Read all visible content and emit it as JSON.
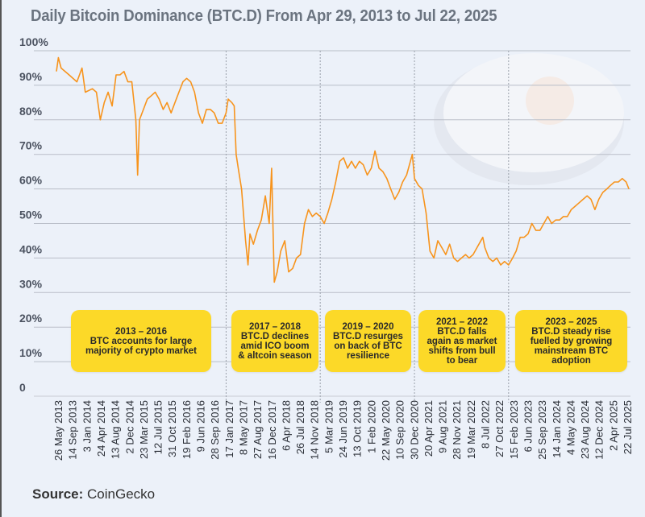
{
  "chart_data": {
    "type": "line",
    "title": "Daily Bitcoin Dominance (BTC.D) From Apr 29, 2013 to Jul 22, 2025",
    "xlabel": "",
    "ylabel": "",
    "ylim": [
      0,
      100
    ],
    "y_ticks": [
      "0",
      "10%",
      "20%",
      "30%",
      "40%",
      "50%",
      "60%",
      "70%",
      "80%",
      "90%",
      "100%"
    ],
    "x_range": [
      "2013-05-26",
      "2025-07-22"
    ],
    "x_ticks": [
      "26 May 2013",
      "14 Sep 2013",
      "3 Jan 2014",
      "24 Apr 2014",
      "13 Aug 2014",
      "2 Dec 2014",
      "23 Mar 2015",
      "12 Jul 2015",
      "31 Oct 2015",
      "19 Feb 2016",
      "9 Jun 2016",
      "28 Sep 2016",
      "17 Jan 2017",
      "8 May 2017",
      "27 Aug 2017",
      "16 Dec 2017",
      "6 Apr 2018",
      "26 Jul 2018",
      "14 Nov 2018",
      "5 Mar 2019",
      "24 Jun 2019",
      "13 Oct 2019",
      "1 Feb 2020",
      "22 May 2020",
      "10 Sep 2020",
      "30 Dec 2020",
      "20 Apr 2021",
      "9 Aug 2021",
      "28 Nov 2021",
      "19 Mar 2022",
      "8 Jul 2022",
      "27 Oct 2022",
      "15 Feb 2023",
      "6 Jun 2023",
      "25 Sep 2023",
      "14 Jan 2024",
      "4 May 2024",
      "23 Aug 2024",
      "12 Dec 2024",
      "2 Apr 2025",
      "22 Jul 2025"
    ],
    "grid": true,
    "line_color": "#f7941d",
    "series": [
      {
        "x": [
          "2013-05-26",
          "2013-06-10",
          "2013-07-01",
          "2013-09-01",
          "2013-11-01",
          "2013-12-10",
          "2014-01-05",
          "2014-03-01",
          "2014-04-01",
          "2014-05-01",
          "2014-06-01",
          "2014-07-01",
          "2014-08-01",
          "2014-09-01",
          "2014-10-01",
          "2014-11-01",
          "2014-12-01",
          "2015-01-01",
          "2015-02-01",
          "2015-02-15",
          "2015-03-01",
          "2015-04-01",
          "2015-05-01",
          "2015-06-01",
          "2015-07-01",
          "2015-08-01",
          "2015-09-01",
          "2015-10-01",
          "2015-11-01",
          "2015-12-01",
          "2016-01-01",
          "2016-02-01",
          "2016-03-01",
          "2016-04-01",
          "2016-05-01",
          "2016-06-01",
          "2016-07-01",
          "2016-08-01",
          "2016-09-01",
          "2016-10-01",
          "2016-11-01",
          "2016-12-01",
          "2017-01-01",
          "2017-01-17",
          "2017-02-15",
          "2017-03-05",
          "2017-03-20",
          "2017-04-05",
          "2017-05-01",
          "2017-06-01",
          "2017-06-20",
          "2017-07-05",
          "2017-08-01",
          "2017-09-01",
          "2017-10-01",
          "2017-11-01",
          "2017-12-01",
          "2017-12-20",
          "2018-01-10",
          "2018-02-01",
          "2018-03-01",
          "2018-04-01",
          "2018-05-01",
          "2018-06-01",
          "2018-07-01",
          "2018-08-01",
          "2018-09-01",
          "2018-10-01",
          "2018-11-01",
          "2018-12-01",
          "2019-01-01",
          "2019-02-01",
          "2019-03-01",
          "2019-04-01",
          "2019-05-01",
          "2019-06-01",
          "2019-07-01",
          "2019-08-01",
          "2019-09-01",
          "2019-10-01",
          "2019-11-01",
          "2019-12-01",
          "2020-01-01",
          "2020-02-01",
          "2020-03-01",
          "2020-04-01",
          "2020-05-01",
          "2020-06-01",
          "2020-07-01",
          "2020-08-01",
          "2020-09-01",
          "2020-10-01",
          "2020-11-01",
          "2020-12-15",
          "2021-01-01",
          "2021-02-01",
          "2021-03-01",
          "2021-04-01",
          "2021-05-01",
          "2021-06-01",
          "2021-07-01",
          "2021-08-01",
          "2021-09-01",
          "2021-10-01",
          "2021-11-01",
          "2021-12-01",
          "2022-01-01",
          "2022-02-01",
          "2022-03-01",
          "2022-04-01",
          "2022-05-01",
          "2022-06-15",
          "2022-07-01",
          "2022-08-01",
          "2022-09-01",
          "2022-10-01",
          "2022-11-01",
          "2022-12-01",
          "2023-01-01",
          "2023-02-01",
          "2023-03-01",
          "2023-04-01",
          "2023-05-01",
          "2023-06-01",
          "2023-07-01",
          "2023-08-01",
          "2023-09-01",
          "2023-10-01",
          "2023-11-01",
          "2023-12-01",
          "2024-01-01",
          "2024-02-01",
          "2024-03-01",
          "2024-04-01",
          "2024-05-01",
          "2024-06-01",
          "2024-07-01",
          "2024-08-01",
          "2024-09-01",
          "2024-10-01",
          "2024-11-01",
          "2024-12-01",
          "2025-01-01",
          "2025-02-01",
          "2025-03-01",
          "2025-04-01",
          "2025-05-01",
          "2025-06-01",
          "2025-07-01",
          "2025-07-22"
        ],
        "y": [
          94,
          98,
          95,
          93,
          91,
          95,
          88,
          89,
          88,
          80,
          85,
          88,
          84,
          93,
          93,
          94,
          91,
          91,
          80,
          64,
          80,
          83,
          86,
          87,
          88,
          86,
          83,
          85,
          82,
          85,
          88,
          91,
          92,
          91,
          88,
          82,
          79,
          83,
          83,
          82,
          79,
          79,
          82,
          86,
          85,
          84,
          70,
          66,
          60,
          45,
          38,
          47,
          44,
          48,
          51,
          58,
          50,
          66,
          33,
          36,
          42,
          45,
          36,
          37,
          40,
          41,
          50,
          54,
          52,
          53,
          52,
          50,
          53,
          57,
          62,
          68,
          69,
          66,
          68,
          66,
          68,
          67,
          64,
          66,
          71,
          66,
          65,
          63,
          60,
          57,
          59,
          62,
          64,
          70,
          63,
          61,
          60,
          53,
          42,
          40,
          45,
          43,
          41,
          44,
          40,
          39,
          40,
          41,
          40,
          41,
          43,
          46,
          43,
          40,
          39,
          40,
          38,
          39,
          38,
          40,
          42,
          46,
          46,
          47,
          50,
          48,
          48,
          50,
          52,
          50,
          51,
          51,
          52,
          52,
          54,
          55,
          56,
          57,
          58,
          57,
          54,
          57,
          59,
          60,
          61,
          62,
          62,
          63,
          62,
          60
        ]
      }
    ],
    "annotations": [
      {
        "lines": [
          "2013 – 2016",
          "BTC accounts for large",
          "majority of crypto market"
        ]
      },
      {
        "lines": [
          "2017 – 2018",
          "BTC.D declines",
          "amid ICO boom",
          "& altcoin season"
        ]
      },
      {
        "lines": [
          "2019 – 2020",
          "BTC.D resurges",
          "on back of BTC",
          "resilience"
        ]
      },
      {
        "lines": [
          "2021 – 2022",
          "BTC.D falls",
          "again as market",
          "shifts from bull",
          "to bear"
        ]
      },
      {
        "lines": [
          "2023 – 2025",
          "BTC.D steady rise",
          "fuelled by growing",
          "mainstream BTC",
          "adoption"
        ]
      }
    ],
    "period_dividers": [
      "2017-01-01",
      "2019-01-01",
      "2021-01-01",
      "2023-01-01"
    ],
    "annotation_color": "#fcd928"
  },
  "source": {
    "label": "Source:",
    "value": "CoinGecko"
  }
}
